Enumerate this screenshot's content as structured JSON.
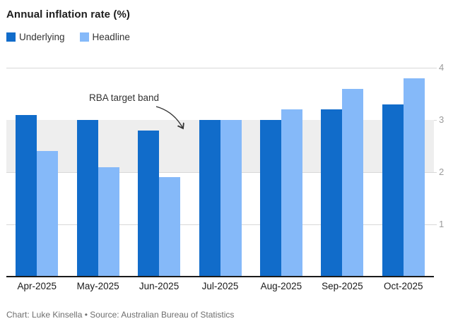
{
  "title": "Annual inflation rate (%)",
  "caption": "Chart: Luke Kinsella • Source: Australian Bureau of Statistics",
  "legend": {
    "items": [
      {
        "label": "Underlying",
        "color": "#116CCA"
      },
      {
        "label": "Headline",
        "color": "#85B9F9"
      }
    ]
  },
  "annotation": {
    "text": "RBA target band"
  },
  "chart_data": {
    "type": "bar",
    "title": "Annual inflation rate (%)",
    "categories": [
      "Apr-2025",
      "May-2025",
      "Jun-2025",
      "Jul-2025",
      "Aug-2025",
      "Sep-2025",
      "Oct-2025"
    ],
    "series": [
      {
        "name": "Underlying",
        "color": "#116CCA",
        "values": [
          3.1,
          3.0,
          2.8,
          3.0,
          3.0,
          3.2,
          3.3
        ]
      },
      {
        "name": "Headline",
        "color": "#85B9F9",
        "values": [
          2.4,
          2.1,
          1.9,
          3.0,
          3.2,
          3.6,
          3.8
        ]
      }
    ],
    "xlabel": "",
    "ylabel": "",
    "ylim": [
      0,
      4
    ],
    "yticks": [
      1,
      2,
      3,
      4
    ],
    "axis_side": "right",
    "grid": true,
    "gridline_color": "#d8d8d8",
    "baseline_color": "#1a1a1a",
    "band": {
      "label": "RBA target band",
      "from": 2,
      "to": 3,
      "color": "#eeeeee"
    },
    "legend_position": "top-left"
  }
}
